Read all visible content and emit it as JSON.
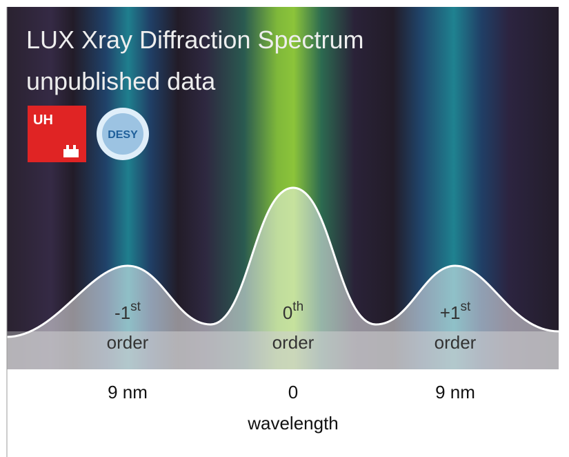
{
  "header": {
    "title": "LUX Xray Diffraction Spectrum",
    "subtitle": "unpublished data"
  },
  "logos": {
    "uhh": "UH",
    "desy": "DESY"
  },
  "peaks": [
    {
      "number": "-1",
      "suffix": "st",
      "label": "order"
    },
    {
      "number": "0",
      "suffix": "th",
      "label": "order"
    },
    {
      "number": "+1",
      "suffix": "st",
      "label": "order"
    }
  ],
  "axis": {
    "ticks": [
      "9 nm",
      "0",
      "9 nm"
    ],
    "label": "wavelength"
  }
}
